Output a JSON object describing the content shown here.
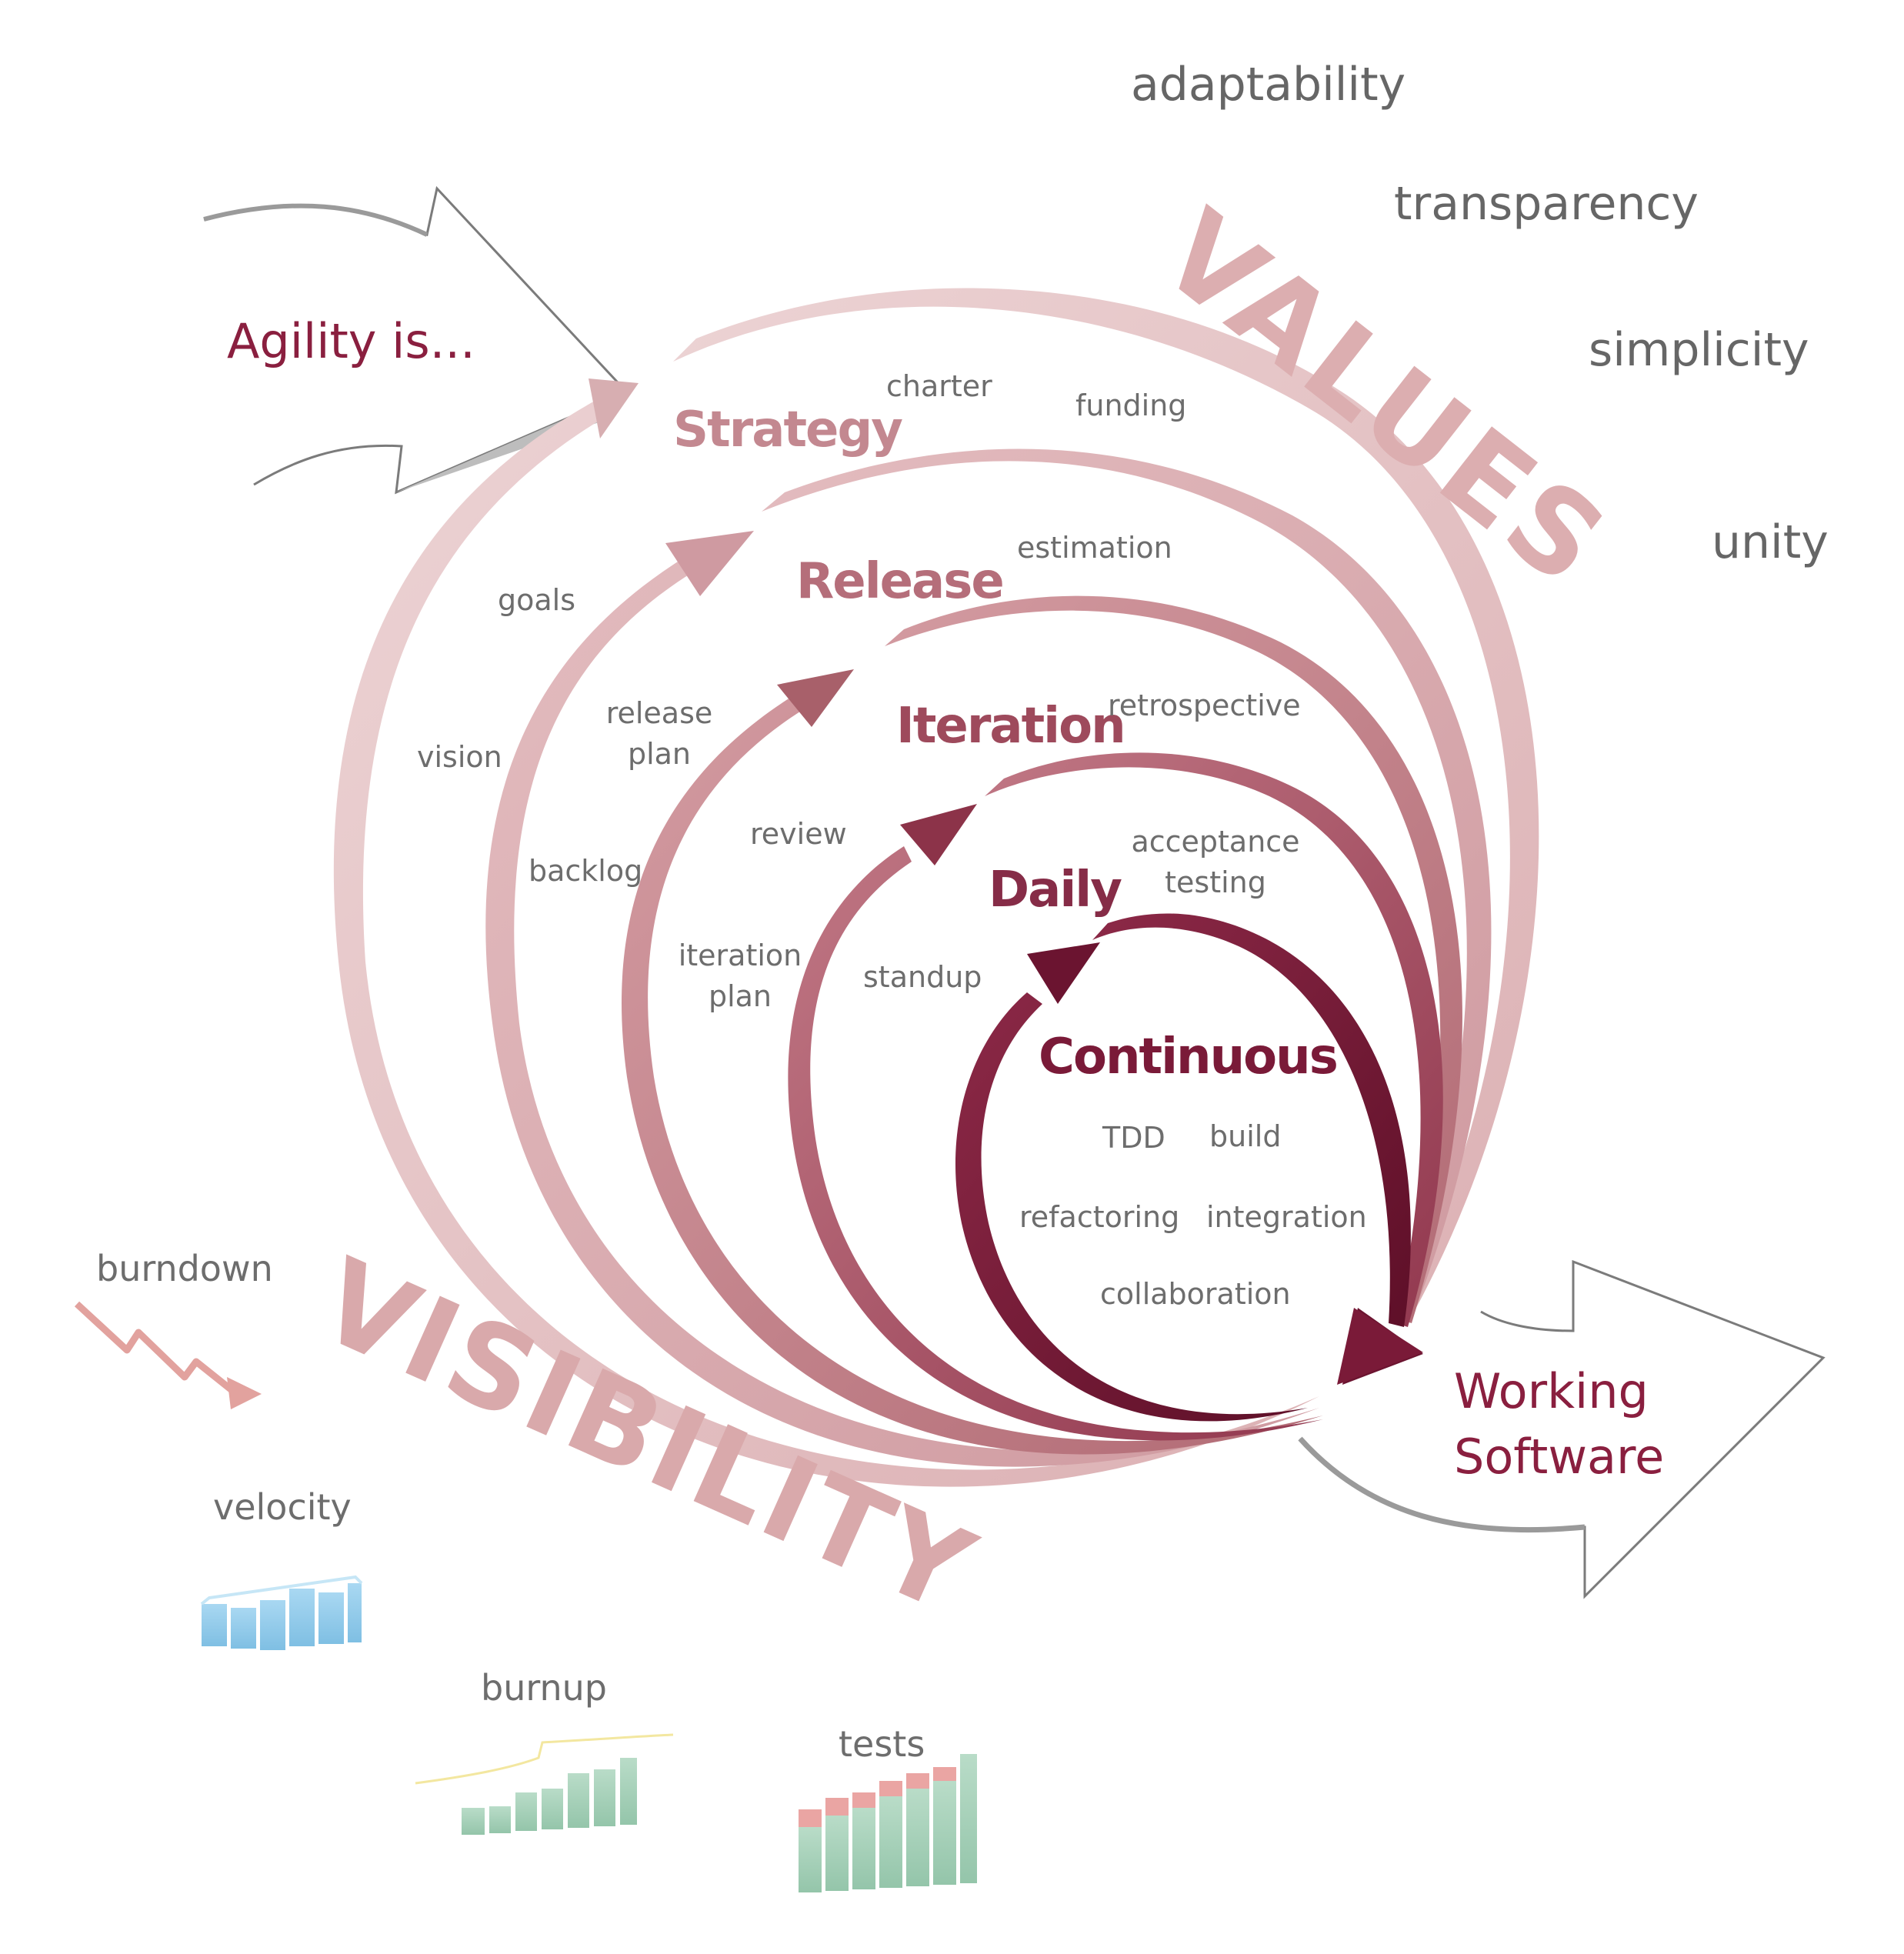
{
  "intro": {
    "label": "Agility is..."
  },
  "outcome": {
    "line1": "Working",
    "line2": "Software"
  },
  "values": {
    "title": "VALUES",
    "items": [
      "adaptability",
      "transparency",
      "simplicity",
      "unity"
    ]
  },
  "visibility": {
    "title": "VISIBILITY",
    "metrics": [
      "burndown",
      "velocity",
      "burnup",
      "tests"
    ]
  },
  "cycles": [
    {
      "name": "Strategy",
      "activities": [
        "charter",
        "funding",
        "goals",
        "vision"
      ]
    },
    {
      "name": "Release",
      "activities": [
        "estimation",
        "release plan",
        "backlog"
      ]
    },
    {
      "name": "Iteration",
      "activities": [
        "retrospective",
        "review",
        "iteration plan"
      ]
    },
    {
      "name": "Daily",
      "activities": [
        "acceptance testing",
        "standup"
      ]
    },
    {
      "name": "Continuous",
      "activities": [
        "TDD",
        "build",
        "refactoring",
        "integration",
        "collaboration"
      ]
    }
  ],
  "colors": {
    "strategy": "#e6c4c6",
    "release": "#d9a7ab",
    "iteration": "#c4848b",
    "daily": "#a85566",
    "continuous": "#7a1a38",
    "text_grey": "#6d6d6d",
    "title_maroon": "#8a1f3f"
  }
}
